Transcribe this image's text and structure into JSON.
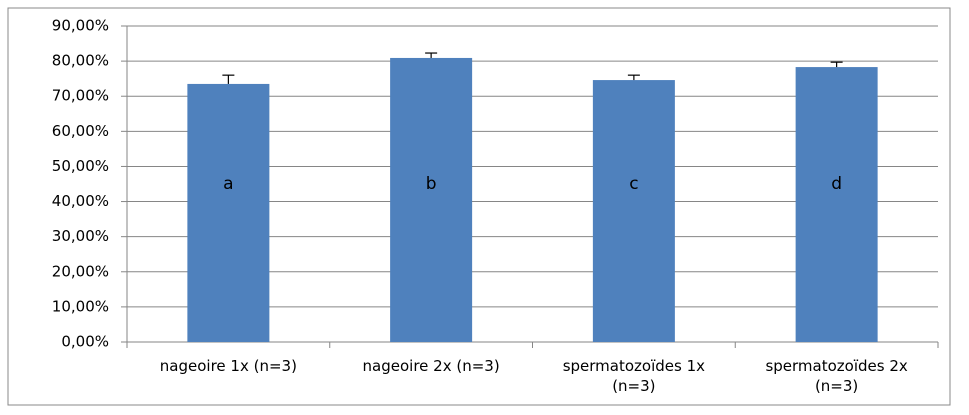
{
  "chart_data": {
    "type": "bar",
    "categories": [
      "nageoire 1x (n=3)",
      "nageoire 2x (n=3)",
      "spermatozoïdes 1x (n=3)",
      "spermatozoïdes 2x (n=3)"
    ],
    "values": [
      73.5,
      80.9,
      74.6,
      78.3
    ],
    "errors": [
      2.5,
      1.4,
      1.4,
      1.4
    ],
    "bar_labels": [
      "a",
      "b",
      "c",
      "d"
    ],
    "color": "#4f81bd",
    "ylim": [
      0,
      90
    ],
    "yticks": [
      {
        "value": 0,
        "label": "0,00%"
      },
      {
        "value": 10,
        "label": "10,00%"
      },
      {
        "value": 20,
        "label": "20,00%"
      },
      {
        "value": 30,
        "label": "30,00%"
      },
      {
        "value": 40,
        "label": "40,00%"
      },
      {
        "value": 50,
        "label": "50,00%"
      },
      {
        "value": 60,
        "label": "60,00%"
      },
      {
        "value": 70,
        "label": "70,00%"
      },
      {
        "value": 80,
        "label": "80,00%"
      },
      {
        "value": 90,
        "label": "90,00%"
      }
    ],
    "grid": true
  }
}
